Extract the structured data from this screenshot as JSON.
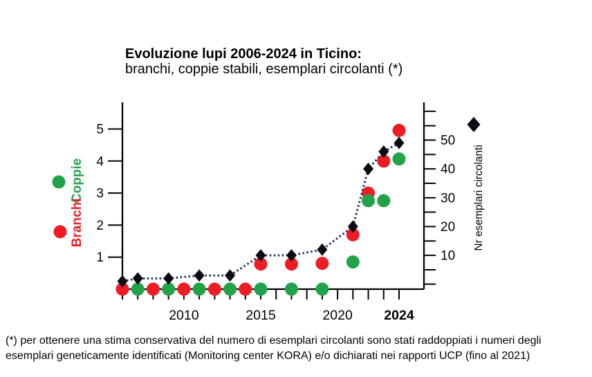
{
  "title": {
    "line1": "Evoluzione lupi 2006-2024 in Ticino:",
    "line2": "branchi, coppie stabili, esemplari circolanti (*)"
  },
  "footnote": {
    "line1": "(*) per ottenere una stima conservativa del numero di esemplari circolanti sono stati raddoppiati i numeri degli",
    "line2": "esemplari geneticamente identificati (Monitoring center KORA) e/o dichiarati nei rapporti UCP (fino al 2021)"
  },
  "colors": {
    "branchi": "#ee1c24",
    "coppie": "#22a34a",
    "esemplari": "#0b0b14",
    "dotted_line": "#1f3864",
    "axis": "#000000"
  },
  "legend": {
    "left": [
      {
        "label": "Coppie",
        "color_key": "coppie"
      },
      {
        "label": "Branchi",
        "color_key": "branchi"
      }
    ],
    "right_label": "Nr esemplari circolanti"
  },
  "chart_data": {
    "type": "scatter",
    "title": "Evoluzione lupi 2006-2024 in Ticino: branchi, coppie stabili, esemplari circolanti (*)",
    "x_axis": {
      "min_year": 2006,
      "max_year": 2024,
      "labels": [
        {
          "year": 2010,
          "text": "2010",
          "bold": false
        },
        {
          "year": 2015,
          "text": "2015",
          "bold": false
        },
        {
          "year": 2020,
          "text": "2020",
          "bold": false
        },
        {
          "year": 2024,
          "text": "2024",
          "bold": true
        }
      ]
    },
    "left_axis": {
      "ticks": [
        1,
        2,
        3,
        4,
        5
      ],
      "series_labels": [
        "Branchi",
        "Coppie"
      ]
    },
    "right_axis": {
      "label": "Nr esemplari circolanti",
      "labeled_ticks": [
        10,
        20,
        30,
        40,
        50
      ],
      "minor_tick_step": 5,
      "max_tick": 60
    },
    "series": [
      {
        "name": "Branchi",
        "marker": "circle",
        "axis": "left",
        "color_key": "branchi",
        "line": "none",
        "points": [
          [
            2006,
            0
          ],
          [
            2008,
            0
          ],
          [
            2010,
            0
          ],
          [
            2012,
            0
          ],
          [
            2014,
            0
          ],
          [
            2015,
            1
          ],
          [
            2017,
            1
          ],
          [
            2019,
            1
          ],
          [
            2021,
            2
          ],
          [
            2022,
            3
          ],
          [
            2023,
            4
          ],
          [
            2024,
            5
          ]
        ]
      },
      {
        "name": "Coppie",
        "marker": "circle",
        "axis": "left",
        "color_key": "coppie",
        "line": "none",
        "points": [
          [
            2007,
            0
          ],
          [
            2009,
            0
          ],
          [
            2011,
            0
          ],
          [
            2013,
            0
          ],
          [
            2015,
            0
          ],
          [
            2017,
            0
          ],
          [
            2019,
            0
          ],
          [
            2021,
            1
          ],
          [
            2022,
            3
          ],
          [
            2023,
            3
          ],
          [
            2024,
            4
          ]
        ]
      },
      {
        "name": "Nr esemplari circolanti",
        "marker": "diamond",
        "axis": "right",
        "color_key": "esemplari",
        "line": "dotted",
        "points": [
          [
            2006,
            1
          ],
          [
            2007,
            2
          ],
          [
            2009,
            2
          ],
          [
            2011,
            3
          ],
          [
            2013,
            3
          ],
          [
            2015,
            10
          ],
          [
            2017,
            10
          ],
          [
            2019,
            12
          ],
          [
            2021,
            20
          ],
          [
            2022,
            40
          ],
          [
            2023,
            46
          ],
          [
            2024,
            49
          ]
        ]
      }
    ],
    "marker_render_offsets_px": {
      "Branchi": {
        "2015": 10,
        "2017": 10,
        "2019": 9,
        "2021": 14,
        "2024": 2
      },
      "Coppie": {
        "2021": 7,
        "2022": 11,
        "2023": 11,
        "2024": -3
      }
    }
  }
}
